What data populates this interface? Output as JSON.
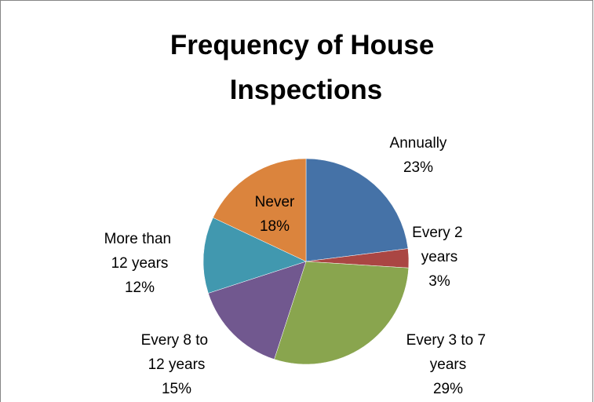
{
  "chart_data": {
    "type": "pie",
    "title": "Frequency of House Inspections",
    "categories": [
      "Annually",
      "Every 2 years",
      "Every 3 to 7 years",
      "Every 8 to 12 years",
      "More than 12 years",
      "Never"
    ],
    "values": [
      23,
      3,
      29,
      15,
      12,
      18
    ],
    "value_labels": [
      "23%",
      "3%",
      "29%",
      "15%",
      "12%",
      "18%"
    ],
    "colors": [
      "#4572a7",
      "#aa4643",
      "#89a54e",
      "#71588f",
      "#4198af",
      "#db843d"
    ]
  }
}
